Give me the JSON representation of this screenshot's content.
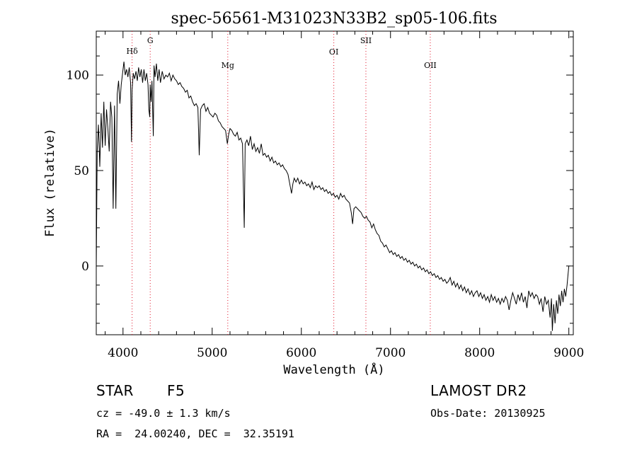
{
  "chart_data": {
    "type": "line",
    "title": "spec-56561-M31023N33B2_sp05-106.fits",
    "xlabel": "Wavelength (Å)",
    "ylabel": "Flux (relative)",
    "xlim": [
      3700,
      9050
    ],
    "ylim": [
      -36,
      123
    ],
    "x_ticks": [
      4000,
      5000,
      6000,
      7000,
      8000,
      9000
    ],
    "y_ticks": [
      0,
      50,
      100
    ],
    "grid": false,
    "series_color": "#000000",
    "line_marker_color": "#e0182d",
    "lines": [
      {
        "name": "Hδ",
        "x": 4102
      },
      {
        "name": "G",
        "x": 4305
      },
      {
        "name": "Mg",
        "x": 5175
      },
      {
        "name": "OI",
        "x": 6364
      },
      {
        "name": "SII",
        "x": 6724
      },
      {
        "name": "OII",
        "x": 7446
      }
    ],
    "spectrum": [
      [
        3700,
        -2
      ],
      [
        3710,
        60
      ],
      [
        3725,
        74
      ],
      [
        3740,
        52
      ],
      [
        3755,
        80
      ],
      [
        3770,
        62
      ],
      [
        3785,
        86
      ],
      [
        3800,
        63
      ],
      [
        3815,
        82
      ],
      [
        3830,
        72
      ],
      [
        3845,
        60
      ],
      [
        3860,
        86
      ],
      [
        3875,
        78
      ],
      [
        3890,
        30
      ],
      [
        3905,
        84
      ],
      [
        3920,
        30
      ],
      [
        3935,
        90
      ],
      [
        3950,
        97
      ],
      [
        3965,
        85
      ],
      [
        3980,
        95
      ],
      [
        3995,
        101
      ],
      [
        4010,
        107
      ],
      [
        4025,
        100
      ],
      [
        4040,
        103
      ],
      [
        4055,
        99
      ],
      [
        4070,
        104
      ],
      [
        4085,
        96
      ],
      [
        4095,
        65
      ],
      [
        4102,
        92
      ],
      [
        4115,
        101
      ],
      [
        4130,
        98
      ],
      [
        4145,
        102
      ],
      [
        4160,
        97
      ],
      [
        4175,
        104
      ],
      [
        4190,
        99
      ],
      [
        4205,
        103
      ],
      [
        4220,
        96
      ],
      [
        4235,
        103
      ],
      [
        4250,
        97
      ],
      [
        4265,
        101
      ],
      [
        4280,
        95
      ],
      [
        4290,
        82
      ],
      [
        4300,
        78
      ],
      [
        4305,
        95
      ],
      [
        4315,
        86
      ],
      [
        4325,
        97
      ],
      [
        4340,
        68
      ],
      [
        4348,
        105
      ],
      [
        4360,
        99
      ],
      [
        4375,
        106
      ],
      [
        4390,
        97
      ],
      [
        4405,
        103
      ],
      [
        4420,
        96
      ],
      [
        4440,
        102
      ],
      [
        4460,
        98
      ],
      [
        4480,
        100
      ],
      [
        4500,
        99
      ],
      [
        4520,
        101
      ],
      [
        4540,
        97
      ],
      [
        4560,
        100
      ],
      [
        4580,
        98
      ],
      [
        4600,
        97
      ],
      [
        4620,
        95
      ],
      [
        4640,
        96
      ],
      [
        4660,
        94
      ],
      [
        4680,
        93
      ],
      [
        4700,
        91
      ],
      [
        4720,
        92
      ],
      [
        4740,
        88
      ],
      [
        4760,
        89
      ],
      [
        4780,
        86
      ],
      [
        4800,
        84
      ],
      [
        4820,
        85
      ],
      [
        4840,
        83
      ],
      [
        4855,
        58
      ],
      [
        4870,
        82
      ],
      [
        4890,
        84
      ],
      [
        4910,
        85
      ],
      [
        4930,
        81
      ],
      [
        4950,
        83
      ],
      [
        4970,
        80
      ],
      [
        4990,
        79
      ],
      [
        5010,
        78
      ],
      [
        5030,
        80
      ],
      [
        5050,
        79
      ],
      [
        5070,
        76
      ],
      [
        5090,
        75
      ],
      [
        5110,
        73
      ],
      [
        5130,
        72
      ],
      [
        5150,
        71
      ],
      [
        5170,
        64
      ],
      [
        5185,
        69
      ],
      [
        5200,
        72
      ],
      [
        5220,
        71
      ],
      [
        5240,
        69
      ],
      [
        5260,
        68
      ],
      [
        5280,
        70
      ],
      [
        5300,
        66
      ],
      [
        5320,
        67
      ],
      [
        5340,
        64
      ],
      [
        5360,
        20
      ],
      [
        5370,
        64
      ],
      [
        5390,
        66
      ],
      [
        5410,
        63
      ],
      [
        5430,
        68
      ],
      [
        5450,
        61
      ],
      [
        5470,
        64
      ],
      [
        5490,
        60
      ],
      [
        5510,
        62
      ],
      [
        5530,
        59
      ],
      [
        5550,
        64
      ],
      [
        5570,
        58
      ],
      [
        5590,
        59
      ],
      [
        5610,
        57
      ],
      [
        5630,
        58
      ],
      [
        5650,
        55
      ],
      [
        5670,
        57
      ],
      [
        5690,
        54
      ],
      [
        5710,
        55
      ],
      [
        5730,
        53
      ],
      [
        5750,
        54
      ],
      [
        5770,
        52
      ],
      [
        5790,
        53
      ],
      [
        5810,
        51
      ],
      [
        5830,
        50
      ],
      [
        5850,
        48
      ],
      [
        5870,
        43
      ],
      [
        5890,
        38
      ],
      [
        5905,
        43
      ],
      [
        5920,
        46
      ],
      [
        5940,
        44
      ],
      [
        5960,
        46
      ],
      [
        5980,
        43
      ],
      [
        6000,
        45
      ],
      [
        6020,
        43
      ],
      [
        6040,
        44
      ],
      [
        6060,
        42
      ],
      [
        6080,
        43
      ],
      [
        6100,
        41
      ],
      [
        6120,
        44
      ],
      [
        6140,
        40
      ],
      [
        6160,
        42
      ],
      [
        6180,
        41
      ],
      [
        6200,
        42
      ],
      [
        6220,
        40
      ],
      [
        6240,
        41
      ],
      [
        6260,
        39
      ],
      [
        6280,
        40
      ],
      [
        6300,
        38
      ],
      [
        6320,
        39
      ],
      [
        6340,
        37
      ],
      [
        6360,
        38
      ],
      [
        6380,
        36
      ],
      [
        6400,
        37
      ],
      [
        6420,
        35
      ],
      [
        6440,
        38
      ],
      [
        6460,
        36
      ],
      [
        6480,
        37
      ],
      [
        6500,
        35
      ],
      [
        6520,
        34
      ],
      [
        6540,
        33
      ],
      [
        6560,
        28
      ],
      [
        6575,
        22
      ],
      [
        6590,
        30
      ],
      [
        6610,
        31
      ],
      [
        6630,
        30
      ],
      [
        6650,
        29
      ],
      [
        6670,
        28
      ],
      [
        6690,
        26
      ],
      [
        6710,
        25
      ],
      [
        6730,
        26
      ],
      [
        6750,
        24
      ],
      [
        6770,
        23
      ],
      [
        6790,
        20
      ],
      [
        6810,
        22
      ],
      [
        6830,
        19
      ],
      [
        6850,
        17
      ],
      [
        6870,
        16
      ],
      [
        6890,
        13
      ],
      [
        6910,
        12
      ],
      [
        6930,
        10
      ],
      [
        6950,
        11
      ],
      [
        6970,
        9
      ],
      [
        6990,
        7
      ],
      [
        7010,
        8
      ],
      [
        7030,
        6
      ],
      [
        7050,
        7
      ],
      [
        7070,
        5
      ],
      [
        7090,
        6
      ],
      [
        7110,
        4
      ],
      [
        7130,
        5
      ],
      [
        7150,
        3
      ],
      [
        7170,
        4
      ],
      [
        7190,
        2
      ],
      [
        7210,
        3
      ],
      [
        7230,
        1
      ],
      [
        7250,
        2
      ],
      [
        7270,
        0
      ],
      [
        7290,
        1
      ],
      [
        7310,
        -1
      ],
      [
        7330,
        0
      ],
      [
        7350,
        -2
      ],
      [
        7370,
        -1
      ],
      [
        7390,
        -3
      ],
      [
        7410,
        -2
      ],
      [
        7430,
        -4
      ],
      [
        7450,
        -3
      ],
      [
        7470,
        -5
      ],
      [
        7490,
        -4
      ],
      [
        7510,
        -6
      ],
      [
        7530,
        -5
      ],
      [
        7550,
        -7
      ],
      [
        7570,
        -6
      ],
      [
        7590,
        -8
      ],
      [
        7610,
        -7
      ],
      [
        7630,
        -9
      ],
      [
        7650,
        -8
      ],
      [
        7670,
        -6
      ],
      [
        7690,
        -10
      ],
      [
        7710,
        -8
      ],
      [
        7730,
        -11
      ],
      [
        7750,
        -9
      ],
      [
        7770,
        -12
      ],
      [
        7790,
        -10
      ],
      [
        7810,
        -13
      ],
      [
        7830,
        -11
      ],
      [
        7850,
        -14
      ],
      [
        7870,
        -12
      ],
      [
        7890,
        -15
      ],
      [
        7910,
        -13
      ],
      [
        7930,
        -16
      ],
      [
        7950,
        -14
      ],
      [
        7970,
        -13
      ],
      [
        7990,
        -16
      ],
      [
        8010,
        -14
      ],
      [
        8030,
        -17
      ],
      [
        8050,
        -15
      ],
      [
        8070,
        -18
      ],
      [
        8090,
        -16
      ],
      [
        8110,
        -19
      ],
      [
        8130,
        -15
      ],
      [
        8150,
        -18
      ],
      [
        8170,
        -16
      ],
      [
        8190,
        -19
      ],
      [
        8210,
        -17
      ],
      [
        8230,
        -20
      ],
      [
        8250,
        -17
      ],
      [
        8270,
        -19
      ],
      [
        8290,
        -16
      ],
      [
        8310,
        -18
      ],
      [
        8330,
        -23
      ],
      [
        8350,
        -18
      ],
      [
        8370,
        -14
      ],
      [
        8390,
        -17
      ],
      [
        8410,
        -20
      ],
      [
        8430,
        -15
      ],
      [
        8450,
        -18
      ],
      [
        8470,
        -14
      ],
      [
        8490,
        -19
      ],
      [
        8510,
        -16
      ],
      [
        8530,
        -22
      ],
      [
        8550,
        -13
      ],
      [
        8570,
        -16
      ],
      [
        8590,
        -14
      ],
      [
        8610,
        -17
      ],
      [
        8630,
        -15
      ],
      [
        8650,
        -16
      ],
      [
        8670,
        -20
      ],
      [
        8690,
        -17
      ],
      [
        8710,
        -24
      ],
      [
        8730,
        -16
      ],
      [
        8750,
        -20
      ],
      [
        8770,
        -18
      ],
      [
        8790,
        -27
      ],
      [
        8805,
        -17
      ],
      [
        8815,
        -34
      ],
      [
        8830,
        -20
      ],
      [
        8845,
        -30
      ],
      [
        8860,
        -18
      ],
      [
        8875,
        -25
      ],
      [
        8890,
        -15
      ],
      [
        8905,
        -21
      ],
      [
        8920,
        -13
      ],
      [
        8935,
        -19
      ],
      [
        8950,
        -12
      ],
      [
        8965,
        -16
      ],
      [
        8980,
        -10
      ],
      [
        8990,
        -5
      ],
      [
        9000,
        0
      ]
    ]
  },
  "info": {
    "object_class": "STAR",
    "subclass": "F5",
    "survey": "LAMOST DR2",
    "redshift": "cz = -49.0 ± 1.3 km/s",
    "obs_date": "Obs-Date: 20130925",
    "coords": "RA =  24.00240, DEC =  32.35191"
  }
}
